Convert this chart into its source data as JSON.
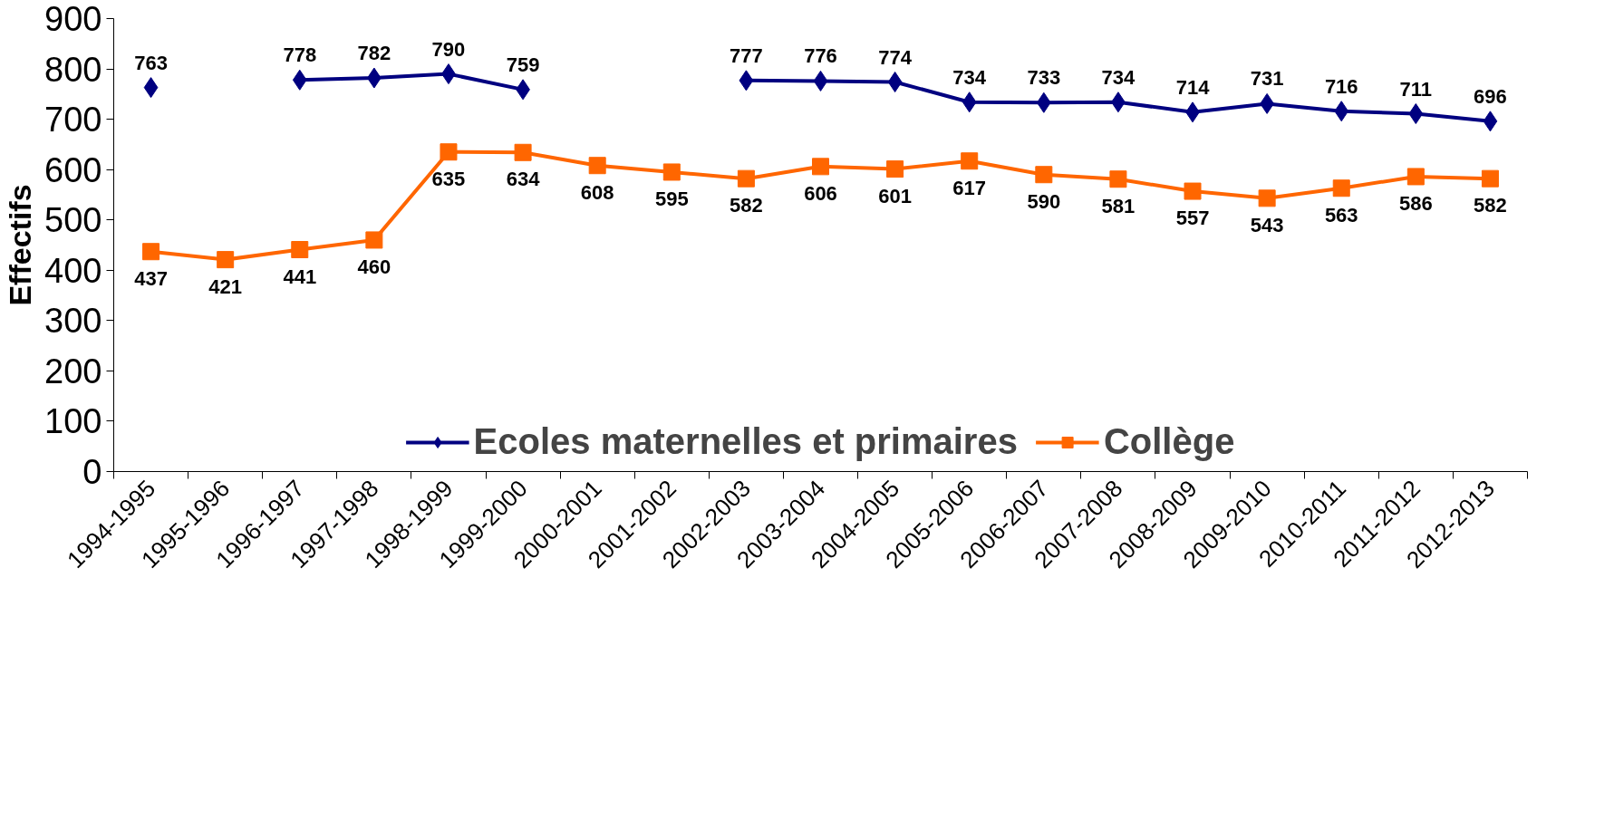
{
  "chart_data": {
    "type": "line",
    "ylabel": "Effectifs",
    "categories": [
      "1994-1995",
      "1995-1996",
      "1996-1997",
      "1997-1998",
      "1998-1999",
      "1999-2000",
      "2000-2001",
      "2001-2002",
      "2002-2003",
      "2003-2004",
      "2004-2005",
      "2005-2006",
      "2006-2007",
      "2007-2008",
      "2008-2009",
      "2009-2010",
      "2010-2011",
      "2011-2012",
      "2012-2013"
    ],
    "series": [
      {
        "name": "Ecoles maternelles et primaires",
        "color": "#000080",
        "marker": "diamond",
        "values": [
          763,
          null,
          778,
          782,
          790,
          759,
          null,
          null,
          777,
          776,
          774,
          734,
          733,
          734,
          714,
          731,
          716,
          711,
          696
        ]
      },
      {
        "name": "Collège",
        "color": "#ff6600",
        "marker": "square",
        "values": [
          437,
          421,
          441,
          460,
          635,
          634,
          608,
          595,
          582,
          606,
          601,
          617,
          590,
          581,
          557,
          543,
          563,
          586,
          582
        ]
      }
    ],
    "ylim": [
      0,
      900
    ],
    "yticks": [
      0,
      100,
      200,
      300,
      400,
      500,
      600,
      700,
      800,
      900
    ],
    "grid": false,
    "legend": "bottom",
    "data_labels": true,
    "line_style": "solid"
  }
}
